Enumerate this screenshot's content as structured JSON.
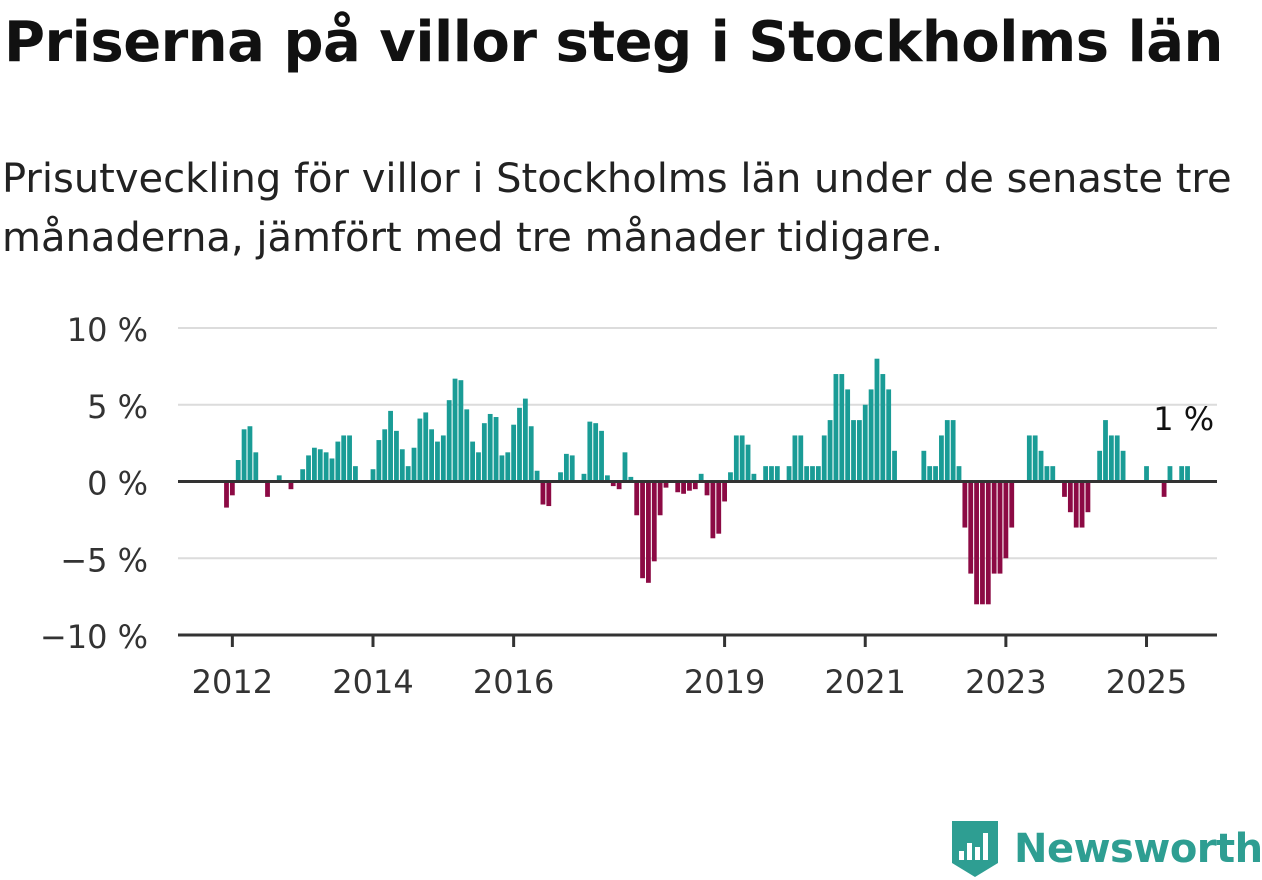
{
  "header": {
    "title": "Priserna på villor steg i Stockholms län",
    "subtitle": "Prisutveckling för villor i Stockholms län under de senaste tre månaderna, jämfört med tre månader tidigare."
  },
  "chart_data": {
    "type": "bar",
    "x_unit": "month",
    "y_unit": "%",
    "start": "2011-12",
    "values": [
      -1.7,
      -0.9,
      1.4,
      3.4,
      3.6,
      1.9,
      0,
      -1.0,
      0,
      0.4,
      0,
      -0.5,
      0,
      0.8,
      1.7,
      2.2,
      2.1,
      1.9,
      1.5,
      2.6,
      3.0,
      3.0,
      1.0,
      0,
      0,
      0.8,
      2.7,
      3.4,
      4.6,
      3.3,
      2.1,
      1.0,
      2.2,
      4.1,
      4.5,
      3.4,
      2.6,
      3.0,
      5.3,
      6.7,
      6.6,
      4.7,
      2.6,
      1.9,
      3.8,
      4.4,
      4.2,
      1.7,
      1.9,
      3.7,
      4.8,
      5.4,
      3.6,
      0.7,
      -1.5,
      -1.6,
      0,
      0.6,
      1.8,
      1.7,
      0,
      0.5,
      3.9,
      3.8,
      3.3,
      0.4,
      -0.3,
      -0.5,
      1.9,
      0.3,
      -2.2,
      -6.3,
      -6.6,
      -5.2,
      -2.2,
      -0.4,
      0,
      -0.7,
      -0.8,
      -0.6,
      -0.5,
      0.5,
      -0.9,
      -3.7,
      -3.4,
      -1.3,
      0.6,
      3.0,
      3.0,
      2.4,
      0.5,
      0,
      1.0,
      1.0,
      1.0,
      0,
      1.0,
      3.0,
      3.0,
      1.0,
      1.0,
      1.0,
      3.0,
      4.0,
      7.0,
      7.0,
      6.0,
      4.0,
      4.0,
      5.0,
      6.0,
      8.0,
      7.0,
      6.0,
      2.0,
      0,
      0,
      0,
      0,
      2.0,
      1.0,
      1.0,
      3.0,
      4.0,
      4.0,
      1.0,
      -3.0,
      -6.0,
      -8.0,
      -8.0,
      -8.0,
      -6.0,
      -6.0,
      -5.0,
      -3.0,
      0,
      0,
      3.0,
      3.0,
      2.0,
      1.0,
      1.0,
      0,
      -1.0,
      -2.0,
      -3.0,
      -3.0,
      -2.0,
      0,
      2.0,
      4.0,
      3.0,
      3.0,
      2.0,
      0,
      0,
      0,
      1.0,
      0,
      0,
      -1.0,
      1.0,
      0,
      1.0,
      1.0
    ],
    "ylim": [
      -10,
      10
    ],
    "yticks": [
      10,
      5,
      0,
      -5,
      -10
    ],
    "ytick_labels": [
      "10 %",
      "5 %",
      "0 %",
      "−5 %",
      "−10 %"
    ],
    "xticks": [
      {
        "label": "2012",
        "index": 1
      },
      {
        "label": "2014",
        "index": 25
      },
      {
        "label": "2016",
        "index": 49
      },
      {
        "label": "2019",
        "index": 85
      },
      {
        "label": "2021",
        "index": 109
      },
      {
        "label": "2023",
        "index": 133
      },
      {
        "label": "2025",
        "index": 157
      }
    ],
    "annotation": {
      "text": "1 %",
      "index": 163
    },
    "colors": {
      "positive": "#1a9c96",
      "negative": "#8c0a44",
      "grid": "#dcdcdc",
      "axis": "#333333"
    },
    "grid": true,
    "legend": "none"
  },
  "branding": {
    "name": "Newsworthy",
    "color": "#2e9e92"
  }
}
